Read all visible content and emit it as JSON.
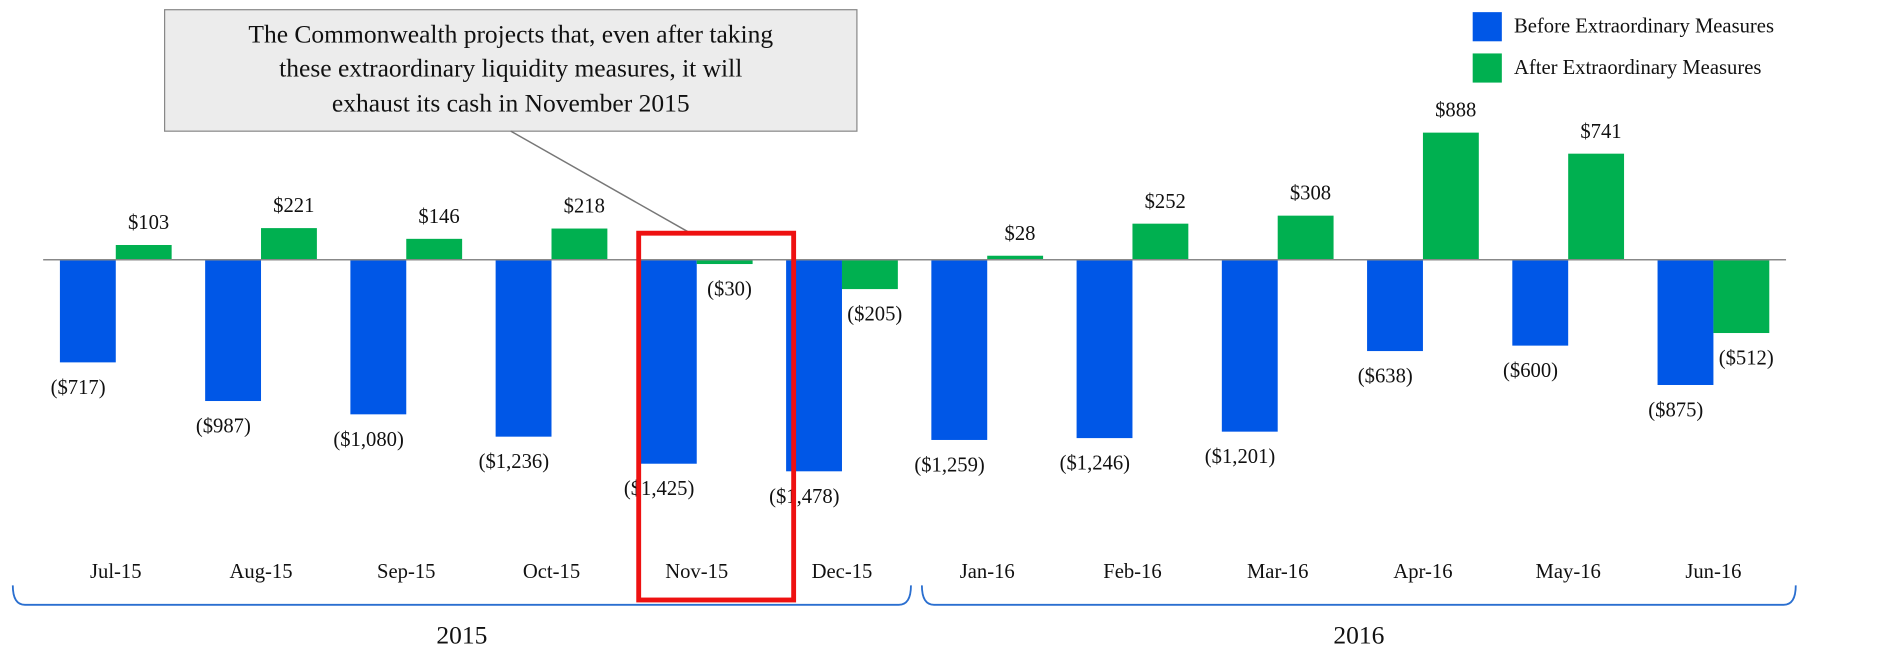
{
  "chart_data": {
    "type": "bar",
    "categories": [
      "Jul-15",
      "Aug-15",
      "Sep-15",
      "Oct-15",
      "Nov-15",
      "Dec-15",
      "Jan-16",
      "Feb-16",
      "Mar-16",
      "Apr-16",
      "May-16",
      "Jun-16"
    ],
    "series": [
      {
        "name": "Before Extraordinary Measures",
        "color": "#0057e7",
        "values": [
          -717,
          -987,
          -1080,
          -1236,
          -1425,
          -1478,
          -1259,
          -1246,
          -1201,
          -638,
          -600,
          -875
        ],
        "value_labels": [
          "($717)",
          "($987)",
          "($1,080)",
          "($1,236)",
          "($1,425)",
          "($1,478)",
          "($1,259)",
          "($1,246)",
          "($1,201)",
          "($638)",
          "($600)",
          "($875)"
        ]
      },
      {
        "name": "After Extraordinary Measures",
        "color": "#00b050",
        "values": [
          103,
          221,
          146,
          218,
          -30,
          -205,
          28,
          252,
          308,
          888,
          741,
          -512
        ],
        "value_labels": [
          "$103",
          "$221",
          "$146",
          "$218",
          "($30)",
          "($205)",
          "$28",
          "$252",
          "$308",
          "$888",
          "$741",
          "($512)"
        ]
      }
    ],
    "ylim": [
      -1800,
      1000
    ],
    "legend": "top-right",
    "annotation_lines": [
      "The Commonwealth projects that, even after taking",
      "these extraordinary liquidity measures, it will",
      "exhaust its cash in November 2015"
    ],
    "year_groups": [
      "2015",
      "2016"
    ]
  }
}
